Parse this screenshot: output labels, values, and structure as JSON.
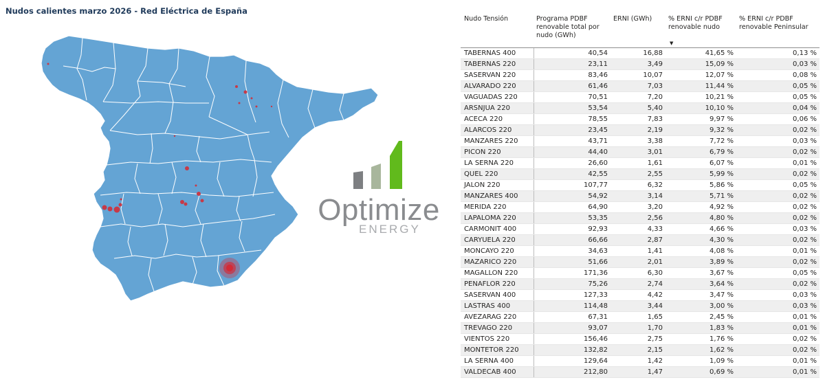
{
  "title": "Nudos calientes marzo 2026 - Red Eléctrica de España",
  "map": {
    "fill_color": "#64a4d4",
    "border_color": "#ffffff",
    "marker_color": "#d42a36"
  },
  "logo": {
    "name": "Optimize",
    "subtitle": "ENERGY",
    "bar_gray": "#7d7f82",
    "bar_light": "#a8b69c",
    "bar_green": "#61ba1c"
  },
  "table": {
    "headers": {
      "nudo": "Nudo Tensión",
      "programa": "Programa PDBF renovable total por nudo (GWh)",
      "erni": "ERNI (GWh)",
      "pct_nudo": "% ERNI c/r PDBF renovable nudo",
      "pct_peninsular": "% ERNI c/r PDBF renovable Peninsular"
    },
    "sorted_by": "pct_nudo",
    "rows": [
      {
        "nudo": "TABERNAS 400",
        "programa": "40,54",
        "erni": "16,88",
        "pct_nudo": "41,65 %",
        "pct_peninsular": "0,13 %"
      },
      {
        "nudo": "TABERNAS 220",
        "programa": "23,11",
        "erni": "3,49",
        "pct_nudo": "15,09 %",
        "pct_peninsular": "0,03 %"
      },
      {
        "nudo": "SASERVAN 220",
        "programa": "83,46",
        "erni": "10,07",
        "pct_nudo": "12,07 %",
        "pct_peninsular": "0,08 %"
      },
      {
        "nudo": "ALVARADO 220",
        "programa": "61,46",
        "erni": "7,03",
        "pct_nudo": "11,44 %",
        "pct_peninsular": "0,05 %"
      },
      {
        "nudo": "VAGUADAS 220",
        "programa": "70,51",
        "erni": "7,20",
        "pct_nudo": "10,21 %",
        "pct_peninsular": "0,05 %"
      },
      {
        "nudo": "ARSNJUA 220",
        "programa": "53,54",
        "erni": "5,40",
        "pct_nudo": "10,10 %",
        "pct_peninsular": "0,04 %"
      },
      {
        "nudo": "ACECA 220",
        "programa": "78,55",
        "erni": "7,83",
        "pct_nudo": "9,97 %",
        "pct_peninsular": "0,06 %"
      },
      {
        "nudo": "ALARCOS 220",
        "programa": "23,45",
        "erni": "2,19",
        "pct_nudo": "9,32 %",
        "pct_peninsular": "0,02 %"
      },
      {
        "nudo": "MANZARES 220",
        "programa": "43,71",
        "erni": "3,38",
        "pct_nudo": "7,72 %",
        "pct_peninsular": "0,03 %"
      },
      {
        "nudo": "PICON 220",
        "programa": "44,40",
        "erni": "3,01",
        "pct_nudo": "6,79 %",
        "pct_peninsular": "0,02 %"
      },
      {
        "nudo": "LA SERNA 220",
        "programa": "26,60",
        "erni": "1,61",
        "pct_nudo": "6,07 %",
        "pct_peninsular": "0,01 %"
      },
      {
        "nudo": "QUEL 220",
        "programa": "42,55",
        "erni": "2,55",
        "pct_nudo": "5,99 %",
        "pct_peninsular": "0,02 %"
      },
      {
        "nudo": "JALON 220",
        "programa": "107,77",
        "erni": "6,32",
        "pct_nudo": "5,86 %",
        "pct_peninsular": "0,05 %"
      },
      {
        "nudo": "MANZARES 400",
        "programa": "54,92",
        "erni": "3,14",
        "pct_nudo": "5,71 %",
        "pct_peninsular": "0,02 %"
      },
      {
        "nudo": "MERIDA 220",
        "programa": "64,90",
        "erni": "3,20",
        "pct_nudo": "4,92 %",
        "pct_peninsular": "0,02 %"
      },
      {
        "nudo": "LAPALOMA 220",
        "programa": "53,35",
        "erni": "2,56",
        "pct_nudo": "4,80 %",
        "pct_peninsular": "0,02 %"
      },
      {
        "nudo": "CARMONIT 400",
        "programa": "92,93",
        "erni": "4,33",
        "pct_nudo": "4,66 %",
        "pct_peninsular": "0,03 %"
      },
      {
        "nudo": "CARYUELA 220",
        "programa": "66,66",
        "erni": "2,87",
        "pct_nudo": "4,30 %",
        "pct_peninsular": "0,02 %"
      },
      {
        "nudo": "MONCAYO 220",
        "programa": "34,63",
        "erni": "1,41",
        "pct_nudo": "4,08 %",
        "pct_peninsular": "0,01 %"
      },
      {
        "nudo": "MAZARICO 220",
        "programa": "51,66",
        "erni": "2,01",
        "pct_nudo": "3,89 %",
        "pct_peninsular": "0,02 %"
      },
      {
        "nudo": "MAGALLON 220",
        "programa": "171,36",
        "erni": "6,30",
        "pct_nudo": "3,67 %",
        "pct_peninsular": "0,05 %"
      },
      {
        "nudo": "PENAFLOR 220",
        "programa": "75,26",
        "erni": "2,74",
        "pct_nudo": "3,64 %",
        "pct_peninsular": "0,02 %"
      },
      {
        "nudo": "SASERVAN 400",
        "programa": "127,33",
        "erni": "4,42",
        "pct_nudo": "3,47 %",
        "pct_peninsular": "0,03 %"
      },
      {
        "nudo": "LASTRAS 400",
        "programa": "114,48",
        "erni": "3,44",
        "pct_nudo": "3,00 %",
        "pct_peninsular": "0,03 %"
      },
      {
        "nudo": "AVEZARAG 220",
        "programa": "67,31",
        "erni": "1,65",
        "pct_nudo": "2,45 %",
        "pct_peninsular": "0,01 %"
      },
      {
        "nudo": "TREVAGO 220",
        "programa": "93,07",
        "erni": "1,70",
        "pct_nudo": "1,83 %",
        "pct_peninsular": "0,01 %"
      },
      {
        "nudo": "VIENTOS 220",
        "programa": "156,46",
        "erni": "2,75",
        "pct_nudo": "1,76 %",
        "pct_peninsular": "0,02 %"
      },
      {
        "nudo": "MONTETOR 220",
        "programa": "132,82",
        "erni": "2,15",
        "pct_nudo": "1,62 %",
        "pct_peninsular": "0,02 %"
      },
      {
        "nudo": "LA SERNA 400",
        "programa": "129,64",
        "erni": "1,42",
        "pct_nudo": "1,09 %",
        "pct_peninsular": "0,01 %"
      },
      {
        "nudo": "VALDECAB 400",
        "programa": "212,80",
        "erni": "1,47",
        "pct_nudo": "0,69 %",
        "pct_peninsular": "0,01 %"
      }
    ]
  }
}
